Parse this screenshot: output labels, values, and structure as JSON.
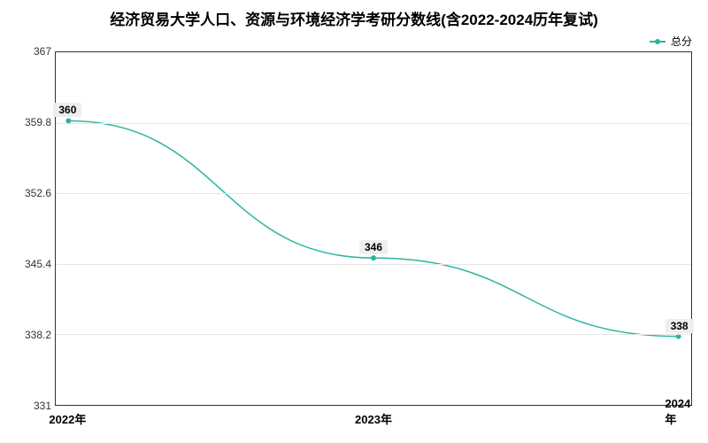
{
  "chart": {
    "type": "line",
    "title": "经济贸易大学人口、资源与环境经济学考研分数线(含2022-2024历年复试)",
    "legend_label": "总分",
    "line_color": "#2bb5a0",
    "marker_color": "#2bb5a0",
    "grid_color": "#e6e6e6",
    "border_color": "#333333",
    "background_color": "#ffffff",
    "data_label_bg": "#eeeeee",
    "title_fontsize": 17,
    "label_fontsize": 12,
    "x_categories": [
      "2022年",
      "2023年",
      "2024年"
    ],
    "x_positions_pct": [
      2,
      50,
      98
    ],
    "values": [
      360,
      346,
      338
    ],
    "ylim": [
      331,
      367
    ],
    "y_ticks": [
      331,
      338.2,
      345.4,
      352.6,
      359.8,
      367
    ],
    "line_width": 1.5,
    "marker_radius": 3
  }
}
